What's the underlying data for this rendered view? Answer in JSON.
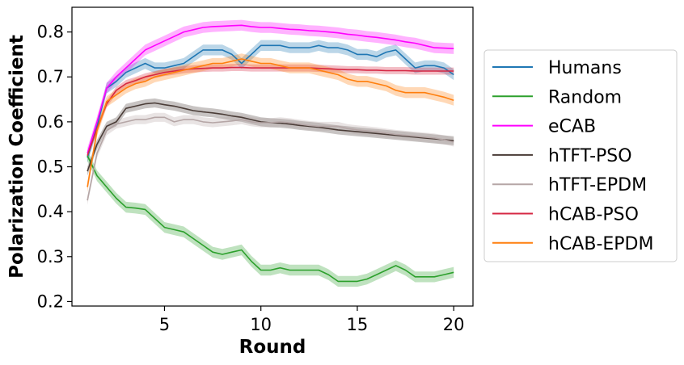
{
  "chart_data": {
    "type": "line",
    "title": "",
    "xlabel": "Round",
    "ylabel": "Polarization Coefficient",
    "xlim": [
      0.2,
      21.0
    ],
    "ylim": [
      0.19,
      0.855
    ],
    "xticks": [
      5,
      10,
      15,
      20
    ],
    "xtick_labels": [
      "5",
      "10",
      "15",
      "20"
    ],
    "yticks": [
      0.2,
      0.3,
      0.4,
      0.5,
      0.6,
      0.7,
      0.8
    ],
    "ytick_labels": [
      "0.2",
      "0.3",
      "0.4",
      "0.5",
      "0.6",
      "0.7",
      "0.8"
    ],
    "grid": false,
    "legend_position": "outside right",
    "x": [
      1,
      1.5,
      2,
      2.5,
      3,
      3.5,
      4,
      4.5,
      5,
      5.5,
      6,
      6.5,
      7,
      7.5,
      8,
      8.5,
      9,
      9.5,
      10,
      10.5,
      11,
      11.5,
      12,
      12.5,
      13,
      13.5,
      14,
      14.5,
      15,
      15.5,
      16,
      16.5,
      17,
      17.5,
      18,
      18.5,
      19,
      19.5,
      20
    ],
    "series": [
      {
        "name": "Humans",
        "color": "#1f77b4",
        "band": 0.012,
        "values": [
          0.52,
          0.59,
          0.675,
          0.69,
          0.71,
          0.72,
          0.73,
          0.72,
          0.72,
          0.725,
          0.73,
          0.745,
          0.76,
          0.76,
          0.76,
          0.75,
          0.73,
          0.75,
          0.77,
          0.77,
          0.77,
          0.765,
          0.765,
          0.765,
          0.77,
          0.765,
          0.765,
          0.76,
          0.75,
          0.75,
          0.745,
          0.755,
          0.76,
          0.74,
          0.72,
          0.725,
          0.725,
          0.72,
          0.705
        ]
      },
      {
        "name": "Random",
        "color": "#2ca02c",
        "band": 0.012,
        "values": [
          0.525,
          0.48,
          0.455,
          0.43,
          0.41,
          0.408,
          0.405,
          0.385,
          0.365,
          0.36,
          0.355,
          0.34,
          0.325,
          0.31,
          0.305,
          0.31,
          0.315,
          0.29,
          0.27,
          0.27,
          0.275,
          0.27,
          0.27,
          0.27,
          0.27,
          0.26,
          0.245,
          0.245,
          0.245,
          0.25,
          0.26,
          0.27,
          0.28,
          0.27,
          0.255,
          0.255,
          0.255,
          0.26,
          0.265
        ]
      },
      {
        "name": "eCAB",
        "color": "#ff00ff",
        "band": 0.012,
        "values": [
          0.53,
          0.6,
          0.675,
          0.7,
          0.72,
          0.74,
          0.76,
          0.77,
          0.78,
          0.79,
          0.8,
          0.805,
          0.81,
          0.812,
          0.813,
          0.814,
          0.815,
          0.812,
          0.81,
          0.81,
          0.808,
          0.806,
          0.805,
          0.803,
          0.802,
          0.8,
          0.798,
          0.795,
          0.793,
          0.79,
          0.788,
          0.785,
          0.782,
          0.778,
          0.775,
          0.77,
          0.765,
          0.764,
          0.763
        ]
      },
      {
        "name": "hTFT-PSO",
        "color": "#4a3c37",
        "band": 0.01,
        "values": [
          0.49,
          0.55,
          0.59,
          0.6,
          0.63,
          0.635,
          0.64,
          0.642,
          0.638,
          0.635,
          0.63,
          0.625,
          0.622,
          0.62,
          0.617,
          0.613,
          0.61,
          0.605,
          0.6,
          0.598,
          0.597,
          0.595,
          0.592,
          0.59,
          0.588,
          0.585,
          0.582,
          0.58,
          0.578,
          0.576,
          0.574,
          0.572,
          0.57,
          0.568,
          0.566,
          0.564,
          0.562,
          0.56,
          0.558
        ]
      },
      {
        "name": "hTFT-EPDM",
        "color": "#b5a6a6",
        "band": 0.01,
        "values": [
          0.425,
          0.53,
          0.58,
          0.595,
          0.6,
          0.605,
          0.605,
          0.61,
          0.61,
          0.6,
          0.605,
          0.605,
          0.6,
          0.598,
          0.6,
          0.602,
          0.605,
          0.6,
          0.598,
          0.598,
          0.6,
          0.598,
          0.595,
          0.592,
          0.59,
          0.59,
          0.59,
          0.585,
          0.582,
          0.58,
          0.578,
          0.575,
          0.572,
          0.57,
          0.568,
          0.566,
          0.564,
          0.56,
          0.555
        ]
      },
      {
        "name": "hCAB-PSO",
        "color": "#d62743",
        "band": 0.008,
        "values": [
          0.525,
          0.585,
          0.64,
          0.67,
          0.685,
          0.692,
          0.7,
          0.705,
          0.71,
          0.713,
          0.716,
          0.718,
          0.719,
          0.72,
          0.72,
          0.721,
          0.721,
          0.72,
          0.72,
          0.72,
          0.72,
          0.72,
          0.72,
          0.72,
          0.719,
          0.718,
          0.717,
          0.716,
          0.716,
          0.715,
          0.715,
          0.714,
          0.714,
          0.714,
          0.713,
          0.713,
          0.713,
          0.713,
          0.713
        ]
      },
      {
        "name": "hCAB-EPDM",
        "color": "#ff7f0e",
        "band": 0.012,
        "values": [
          0.455,
          0.58,
          0.645,
          0.66,
          0.675,
          0.685,
          0.69,
          0.7,
          0.705,
          0.71,
          0.715,
          0.72,
          0.725,
          0.73,
          0.73,
          0.735,
          0.74,
          0.735,
          0.73,
          0.73,
          0.725,
          0.72,
          0.72,
          0.72,
          0.715,
          0.71,
          0.705,
          0.695,
          0.69,
          0.69,
          0.685,
          0.68,
          0.67,
          0.665,
          0.665,
          0.665,
          0.66,
          0.655,
          0.648
        ]
      }
    ]
  }
}
